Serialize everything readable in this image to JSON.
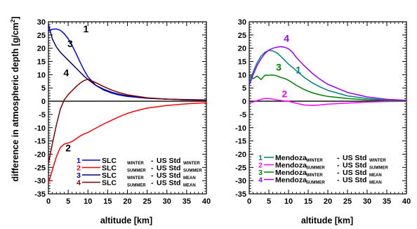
{
  "ylabel": "difference in atmospheric depth [g/cm",
  "ylabel_sup": "2",
  "ylabel_end": "]",
  "xlabel": "altitude [km]",
  "chart_data": [
    {
      "type": "line",
      "xlabel": "altitude [km]",
      "ylabel": "difference in atmospheric depth [g/cm2]",
      "xlim": [
        0,
        40
      ],
      "ylim": [
        -35,
        30
      ],
      "xticks": [
        0,
        5,
        10,
        15,
        20,
        25,
        30,
        35,
        40
      ],
      "yticks": [
        30,
        25,
        20,
        15,
        10,
        5,
        0,
        -5,
        -10,
        -15,
        -20,
        -25,
        -30,
        -35
      ],
      "zero_line": true,
      "legend_position": "bottom-right",
      "series": [
        {
          "id": "1",
          "color": "#0000ee",
          "legend": {
            "n": "1",
            "a": "SLC",
            "as": "WINTER",
            "b": "US Std",
            "bs": "WINTER"
          },
          "label_at": [
            9.5,
            26
          ],
          "x": [
            0,
            1,
            2,
            3,
            4,
            5,
            6,
            7,
            8,
            9,
            10,
            12,
            14,
            16,
            18,
            20,
            25,
            30,
            35,
            40
          ],
          "y": [
            26.5,
            27.2,
            27.3,
            26.8,
            25.5,
            23.6,
            21.0,
            18.0,
            14.8,
            11.8,
            9.2,
            6.0,
            4.2,
            3.1,
            2.3,
            1.8,
            1.1,
            0.8,
            0.6,
            0.5
          ]
        },
        {
          "id": "2",
          "color": "#ff0000",
          "legend": {
            "n": "2",
            "a": "SLC",
            "as": "SUMMER",
            "b": "US Std",
            "bs": "SUMMER"
          },
          "label_at": [
            5,
            -19
          ],
          "x": [
            0,
            1,
            2,
            3,
            4,
            5,
            6,
            7,
            8,
            9,
            10,
            12,
            14,
            16,
            18,
            20,
            22,
            25,
            30,
            35,
            40
          ],
          "y": [
            -31,
            -26,
            -21,
            -17.5,
            -16.2,
            -15.8,
            -15.2,
            -14.2,
            -13.2,
            -12.4,
            -11.8,
            -10.2,
            -8.6,
            -7.2,
            -5.8,
            -4.6,
            -3.7,
            -2.6,
            -1.6,
            -1.0,
            -0.6
          ]
        },
        {
          "id": "3",
          "color": "#000080",
          "legend": {
            "n": "3",
            "a": "SLC",
            "as": "WINTER",
            "b": "US Std",
            "bs": "MEAN"
          },
          "label_at": [
            5.5,
            20.5
          ],
          "x": [
            0,
            1,
            2,
            3,
            4,
            5,
            6,
            7,
            8,
            9,
            10,
            12,
            14,
            16,
            18,
            20,
            25,
            30,
            35,
            40
          ],
          "y": [
            29,
            23.5,
            20.5,
            18.5,
            17,
            15.5,
            14,
            12.5,
            11,
            9.5,
            8.2,
            6.0,
            4.5,
            3.4,
            2.6,
            2.0,
            1.2,
            0.8,
            0.5,
            0.4
          ]
        },
        {
          "id": "4",
          "color": "#800000",
          "legend": {
            "n": "4",
            "a": "SLC",
            "as": "SUMMER",
            "b": "US Std",
            "bs": "MEAN"
          },
          "label_at": [
            4.5,
            9.5
          ],
          "x": [
            0,
            1,
            2,
            3,
            4,
            5,
            6,
            7,
            8,
            9,
            10,
            12,
            14,
            16,
            18,
            20,
            25,
            30,
            35,
            40
          ],
          "y": [
            -23.5,
            -16,
            -9,
            -3,
            0.5,
            2.5,
            4.0,
            5.5,
            6.8,
            7.8,
            8.3,
            7.0,
            5.5,
            4.2,
            3.2,
            2.4,
            1.3,
            0.8,
            0.5,
            0.3
          ]
        }
      ]
    },
    {
      "type": "line",
      "xlabel": "altitude [km]",
      "ylabel": "",
      "xlim": [
        0,
        40
      ],
      "ylim": [
        -35,
        30
      ],
      "xticks": [
        0,
        5,
        10,
        15,
        20,
        25,
        30,
        35,
        40
      ],
      "yticks": [
        30,
        25,
        20,
        15,
        10,
        5,
        0,
        -5,
        -10,
        -15,
        -20,
        -25,
        -30,
        -35
      ],
      "zero_line": true,
      "legend_position": "bottom-right",
      "series": [
        {
          "id": "1",
          "color": "#008080",
          "legend": {
            "n": "1",
            "a": "Mendoza",
            "as": "WINTER",
            "b": "US Std",
            "bs": "WINTER"
          },
          "label_at": [
            12.5,
            10.5
          ],
          "x": [
            0,
            1,
            2,
            3,
            4,
            5,
            6,
            7,
            8,
            9,
            10,
            12,
            14,
            16,
            18,
            20,
            25,
            30,
            35,
            40
          ],
          "y": [
            7,
            11,
            14.5,
            17,
            18.5,
            19.2,
            19.0,
            18.3,
            17.0,
            15.5,
            14.0,
            11.5,
            9.0,
            7.0,
            5.4,
            4.1,
            2.0,
            1.0,
            0.4,
            0.1
          ]
        },
        {
          "id": "2",
          "color": "#ff00ff",
          "legend": {
            "n": "2",
            "a": "Mendoza",
            "as": "SUMMER",
            "b": "US Std",
            "bs": "SUMMER"
          },
          "label_at": [
            9,
            1.5
          ],
          "x": [
            0,
            1,
            2,
            3,
            4,
            5,
            6,
            7,
            8,
            9,
            10,
            12,
            14,
            16,
            18,
            20,
            25,
            30,
            35,
            40
          ],
          "y": [
            -0.5,
            -0.3,
            0.2,
            0.7,
            1.0,
            1.0,
            0.8,
            0.5,
            0.3,
            0.1,
            0.0,
            -0.8,
            -1.4,
            -1.6,
            -1.4,
            -1.1,
            -0.7,
            -0.3,
            -0.1,
            0.0
          ]
        },
        {
          "id": "3",
          "color": "#008000",
          "legend": {
            "n": "3",
            "a": "Mendoza",
            "as": "WINTER",
            "b": "US Std",
            "bs": "MEAN"
          },
          "label_at": [
            7.5,
            11.5
          ],
          "x": [
            0,
            1,
            2,
            3,
            4,
            5,
            6,
            7,
            8,
            9,
            10,
            12,
            14,
            16,
            18,
            20,
            25,
            30,
            35,
            40
          ],
          "y": [
            10,
            8.5,
            9.5,
            8.2,
            9.8,
            9.8,
            9.9,
            9.6,
            9.0,
            8.6,
            7.9,
            6.0,
            4.4,
            3.2,
            2.4,
            1.8,
            1.0,
            0.5,
            0.2,
            0.1
          ]
        },
        {
          "id": "4",
          "color": "#9900ff",
          "legend": {
            "n": "4",
            "a": "Mendoza",
            "as": "SUMMER",
            "b": "US Std",
            "bs": "MEAN"
          },
          "label_at": [
            9.5,
            22.5
          ],
          "x": [
            0,
            1,
            2,
            3,
            4,
            5,
            6,
            7,
            8,
            9,
            10,
            11,
            12,
            14,
            16,
            18,
            20,
            25,
            30,
            35,
            40
          ],
          "y": [
            6,
            10,
            13.5,
            16.0,
            18.0,
            19.3,
            20.0,
            20.4,
            20.6,
            20.4,
            19.8,
            18.5,
            16.5,
            13.4,
            10.6,
            8.3,
            6.4,
            3.3,
            1.6,
            0.7,
            0.3
          ]
        }
      ]
    }
  ]
}
